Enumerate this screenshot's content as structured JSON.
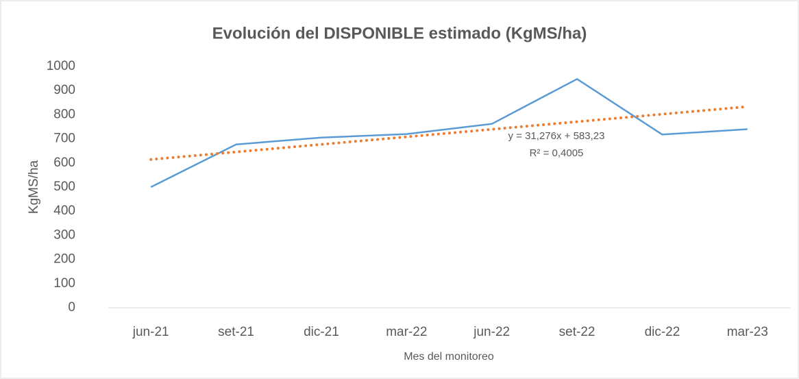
{
  "chart_data": {
    "type": "line",
    "title": "Evolución del DISPONIBLE estimado (KgMS/ha)",
    "y_label": "KgMS/ha",
    "x_label": "Mes del monitoreo",
    "categories": [
      "jun-21",
      "set-21",
      "dic-21",
      "mar-22",
      "jun-22",
      "set-22",
      "dic-22",
      "mar-23"
    ],
    "series": [
      {
        "color": "#5b9bd5",
        "style": "solid",
        "values": [
          500,
          677,
          705,
          720,
          762,
          948,
          718,
          740
        ]
      },
      {
        "color": "#ed7d31",
        "style": "dotted",
        "values": [
          614.5,
          645.8,
          677.1,
          708.3,
          739.6,
          770.9,
          802.2,
          833.4
        ]
      }
    ],
    "annotations": [
      "y = 31,276x + 583,23",
      "R² = 0,4005"
    ],
    "ylim": [
      0,
      1000
    ],
    "yticks": [
      0,
      100,
      200,
      300,
      400,
      500,
      600,
      700,
      800,
      900,
      1000
    ],
    "grid": false
  }
}
